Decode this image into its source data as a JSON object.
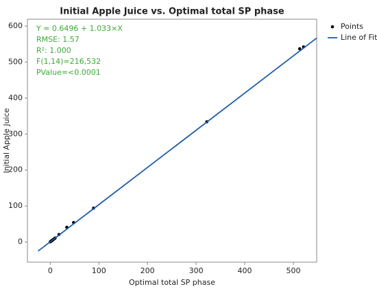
{
  "chart_data": {
    "type": "scatter",
    "title": "Initial Apple Juice vs. Optimal total SP phase",
    "x_label": "Optimal total SP phase",
    "y_label": "Initial Apple Juice",
    "xlim": [
      -47,
      548
    ],
    "ylim": [
      -56,
      619
    ],
    "xticks": [
      0,
      100,
      200,
      300,
      400,
      500
    ],
    "yticks": [
      0,
      100,
      200,
      300,
      400,
      500,
      600
    ],
    "grid": false,
    "legend": "right",
    "annotations": [
      "Y = 0.6496 + 1.033×X",
      "RMSE: 1.57",
      "R²: 1.000",
      "F(1,14)=216,532",
      "PValue=<0.0001"
    ],
    "annotation_color": "#3aa935",
    "series": [
      {
        "name": "Points",
        "mark": "dot",
        "color": "#000000",
        "x": [
          0,
          1,
          2,
          3,
          4,
          5,
          6,
          8,
          10,
          18,
          34,
          48,
          89,
          322,
          513,
          521
        ],
        "values": [
          0.6,
          1.7,
          2.7,
          3.7,
          4.8,
          5.8,
          6.8,
          8.9,
          11,
          21,
          41,
          54,
          94,
          334,
          537,
          542
        ]
      },
      {
        "name": "Line of Fit",
        "mark": "line",
        "color": "#1f5ca8",
        "x": [
          -25,
          548
        ],
        "values": [
          -25.2,
          566.7
        ]
      }
    ]
  }
}
